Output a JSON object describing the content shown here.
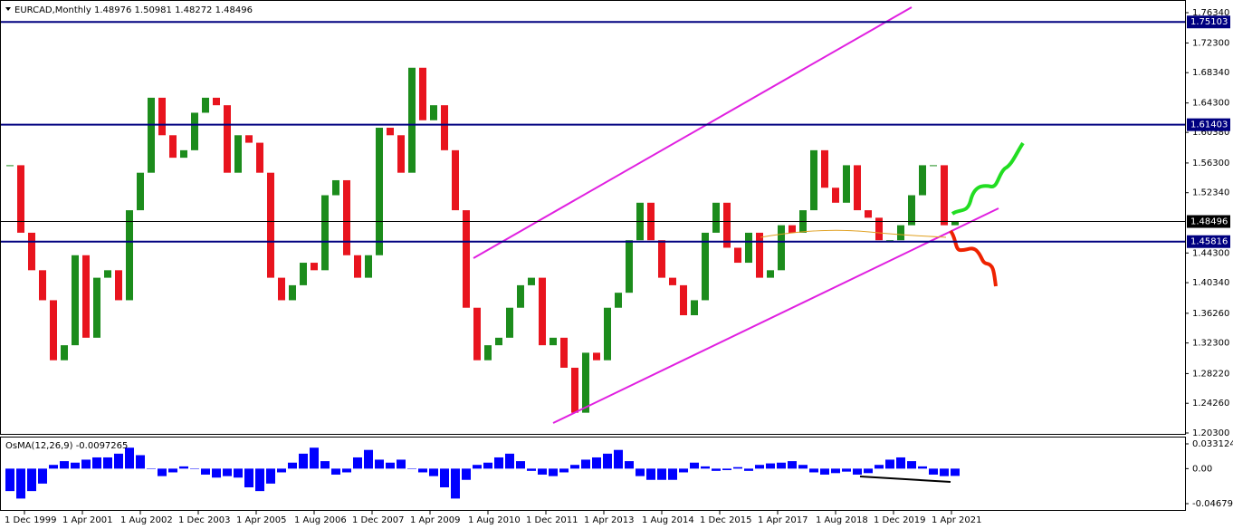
{
  "chart_data": {
    "type": "candlestick",
    "title": "EURCAD,Monthly  1.48976 1.50981 1.48272 1.48496",
    "indicator_title": "OsMA(12,26,9) -0.0097265",
    "up_color": "#1c8c1c",
    "down_color": "#e8141e",
    "osma_color": "#0000ff",
    "close": [
      1.56,
      1.47,
      1.42,
      1.38,
      1.3,
      1.32,
      1.44,
      1.33,
      1.41,
      1.42,
      1.38,
      1.5,
      1.55,
      1.65,
      1.6,
      1.57,
      1.58,
      1.63,
      1.65,
      1.64,
      1.55,
      1.6,
      1.59,
      1.55,
      1.41,
      1.38,
      1.4,
      1.43,
      1.42,
      1.52,
      1.54,
      1.44,
      1.41,
      1.44,
      1.61,
      1.6,
      1.55,
      1.69,
      1.62,
      1.64,
      1.58,
      1.5,
      1.37,
      1.3,
      1.32,
      1.33,
      1.37,
      1.4,
      1.41,
      1.32,
      1.33,
      1.29,
      1.23,
      1.31,
      1.3,
      1.37,
      1.39,
      1.46,
      1.51,
      1.46,
      1.41,
      1.4,
      1.36,
      1.38,
      1.47,
      1.51,
      1.45,
      1.43,
      1.47,
      1.41,
      1.42,
      1.48,
      1.47,
      1.5,
      1.58,
      1.53,
      1.51,
      1.56,
      1.5,
      1.49,
      1.46,
      1.46,
      1.48,
      1.52,
      1.56,
      1.56,
      1.48,
      1.48496
    ],
    "osma": [
      -0.03,
      -0.04,
      -0.03,
      -0.02,
      0.005,
      0.01,
      0.008,
      0.012,
      0.015,
      0.015,
      0.02,
      0.028,
      0.018,
      0.0,
      -0.01,
      -0.005,
      0.003,
      0.0,
      -0.008,
      -0.012,
      -0.01,
      -0.012,
      -0.025,
      -0.03,
      -0.02,
      -0.005,
      0.008,
      0.02,
      0.028,
      0.01,
      -0.008,
      -0.005,
      0.015,
      0.025,
      0.012,
      0.008,
      0.012,
      0.0,
      -0.005,
      -0.01,
      -0.025,
      -0.04,
      -0.015,
      0.005,
      0.008,
      0.015,
      0.02,
      0.01,
      -0.003,
      -0.008,
      -0.01,
      -0.005,
      0.005,
      0.012,
      0.015,
      0.02,
      0.025,
      0.01,
      -0.01,
      -0.015,
      -0.015,
      -0.015,
      -0.005,
      0.008,
      0.003,
      -0.003,
      -0.002,
      0.002,
      -0.003,
      0.005,
      0.007,
      0.008,
      0.01,
      0.005,
      -0.005,
      -0.008,
      -0.006,
      -0.004,
      -0.008,
      -0.006,
      0.005,
      0.012,
      0.015,
      0.01,
      0.003,
      -0.008,
      -0.01,
      -0.0097265
    ],
    "ylim": [
      1.203,
      1.7634
    ],
    "yticks": [
      {
        "value": 1.7634,
        "label": "1.76340"
      },
      {
        "value": 1.723,
        "label": "1.72300"
      },
      {
        "value": 1.6834,
        "label": "1.68340"
      },
      {
        "value": 1.643,
        "label": "1.64300"
      },
      {
        "value": 1.6038,
        "label": "1.60380"
      },
      {
        "value": 1.563,
        "label": "1.56300"
      },
      {
        "value": 1.5234,
        "label": "1.52340"
      },
      {
        "value": 1.443,
        "label": "1.44300"
      },
      {
        "value": 1.4034,
        "label": "1.40340"
      },
      {
        "value": 1.3626,
        "label": "1.36260"
      },
      {
        "value": 1.323,
        "label": "1.32300"
      },
      {
        "value": 1.2822,
        "label": "1.28220"
      },
      {
        "value": 1.2426,
        "label": "1.24260"
      },
      {
        "value": 1.203,
        "label": "1.20300"
      }
    ],
    "levels": [
      {
        "value": 1.75103,
        "label": "1.75103",
        "color": "#000080"
      },
      {
        "value": 1.61403,
        "label": "1.61403",
        "color": "#000080"
      },
      {
        "value": 1.48496,
        "label": "1.48496",
        "color": "#000000"
      },
      {
        "value": 1.45816,
        "label": "1.45816",
        "color": "#000080"
      }
    ],
    "y2lim": [
      -0.046799,
      0.033124
    ],
    "y2ticks": [
      {
        "value": 0.033124,
        "label": "0.033124"
      },
      {
        "value": 0,
        "label": "0.00"
      },
      {
        "value": -0.046799,
        "label": "-0.046799"
      }
    ],
    "x_labels": [
      "1 Dec 1999",
      "1 Apr 2001",
      "1 Aug 2002",
      "1 Dec 2003",
      "1 Apr 2005",
      "1 Aug 2006",
      "1 Dec 2007",
      "1 Apr 2009",
      "1 Aug 2010",
      "1 Dec 2011",
      "1 Apr 2013",
      "1 Aug 2014",
      "1 Dec 2015",
      "1 Apr 2017",
      "1 Aug 2018",
      "1 Dec 2019",
      "1 Apr 2021"
    ]
  }
}
